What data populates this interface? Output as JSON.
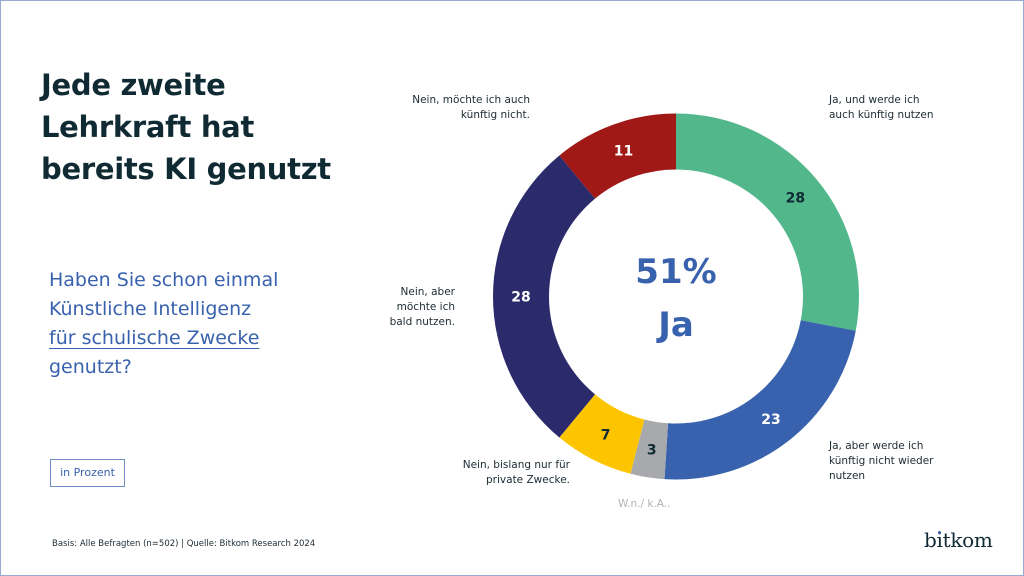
{
  "title_lines": [
    "Jede zweite",
    "Lehrkraft hat",
    "bereits KI genutzt"
  ],
  "question": {
    "lines": [
      "Haben Sie schon einmal",
      "Künstliche Intelligenz",
      "für schulische Zwecke",
      "genutzt?"
    ],
    "underlined_line_index": 2
  },
  "unit_label": "in Prozent",
  "footer": "Basis: Alle Befragten (n=502) | Quelle: Bitkom Research 2024",
  "logo": "bitkom",
  "colors": {
    "title": "#0f2a33",
    "accent": "#3862ad",
    "frame": "#9aa9cf"
  },
  "chart_data": {
    "type": "pie",
    "variant": "donut",
    "title": "Haben Sie schon einmal Künstliche Intelligenz für schulische Zwecke genutzt?",
    "unit": "Prozent",
    "center_label": [
      "51%",
      "Ja"
    ],
    "start": "top",
    "direction": "clockwise",
    "slices": [
      {
        "label": "Ja, und werde ich auch künftig nutzen",
        "label_lines": [
          "Ja, und werde ich",
          "auch künftig nutzen"
        ],
        "value": 28,
        "color": "#53b78c",
        "value_color": "#0f2a33"
      },
      {
        "label": "Ja, aber werde ich künftig nicht wieder nutzen",
        "label_lines": [
          "Ja, aber werde ich",
          "künftig nicht wieder",
          "nutzen"
        ],
        "value": 23,
        "color": "#3862ad",
        "value_color": "#ffffff"
      },
      {
        "label": "W.n. / k.A.",
        "label_lines": [
          "W.n./ k.A.."
        ],
        "value": 3,
        "color": "#a7a9ac",
        "value_color": "#0f2a33"
      },
      {
        "label": "Nein, bislang nur für private Zwecke.",
        "label_lines": [
          "Nein, bislang nur für",
          "private Zwecke."
        ],
        "value": 7,
        "color": "#fcc500",
        "value_color": "#0f2a33"
      },
      {
        "label": "Nein, aber möchte ich bald nutzen.",
        "label_lines": [
          "Nein, aber",
          "möchte ich",
          "bald nutzen."
        ],
        "value": 28,
        "color": "#2b2a6b",
        "value_color": "#ffffff"
      },
      {
        "label": "Nein, möchte ich auch künftig nicht.",
        "label_lines": [
          "Nein, möchte ich auch",
          "künftig nicht."
        ],
        "value": 11,
        "color": "#a01916",
        "value_color": "#ffffff"
      }
    ]
  }
}
